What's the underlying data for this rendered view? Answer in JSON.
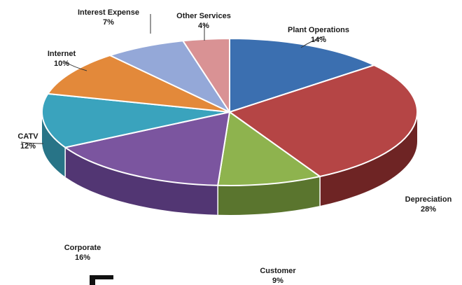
{
  "chart_data": {
    "type": "pie",
    "style": "3d",
    "title": "",
    "categories": [
      "Plant Operations",
      "Depreciation",
      "Customer",
      "Corporate",
      "CATV",
      "Internet",
      "Interest Expense",
      "Other Services"
    ],
    "values": [
      14,
      28,
      9,
      16,
      12,
      10,
      7,
      4
    ],
    "labels": [
      "14%",
      "28%",
      "9%",
      "16%",
      "12%",
      "10%",
      "7%",
      "4%"
    ],
    "colors": [
      "#3b6fb0",
      "#b54545",
      "#8eb34e",
      "#7b559f",
      "#3aa3bd",
      "#e3893a",
      "#94a8d8",
      "#d99294"
    ],
    "side_colors": [
      "#2a4f80",
      "#6e2424",
      "#5a752e",
      "#523673",
      "#287487",
      "#a8601f",
      "#6d7fad",
      "#a86c6e"
    ],
    "legend": "none",
    "grid": false
  }
}
